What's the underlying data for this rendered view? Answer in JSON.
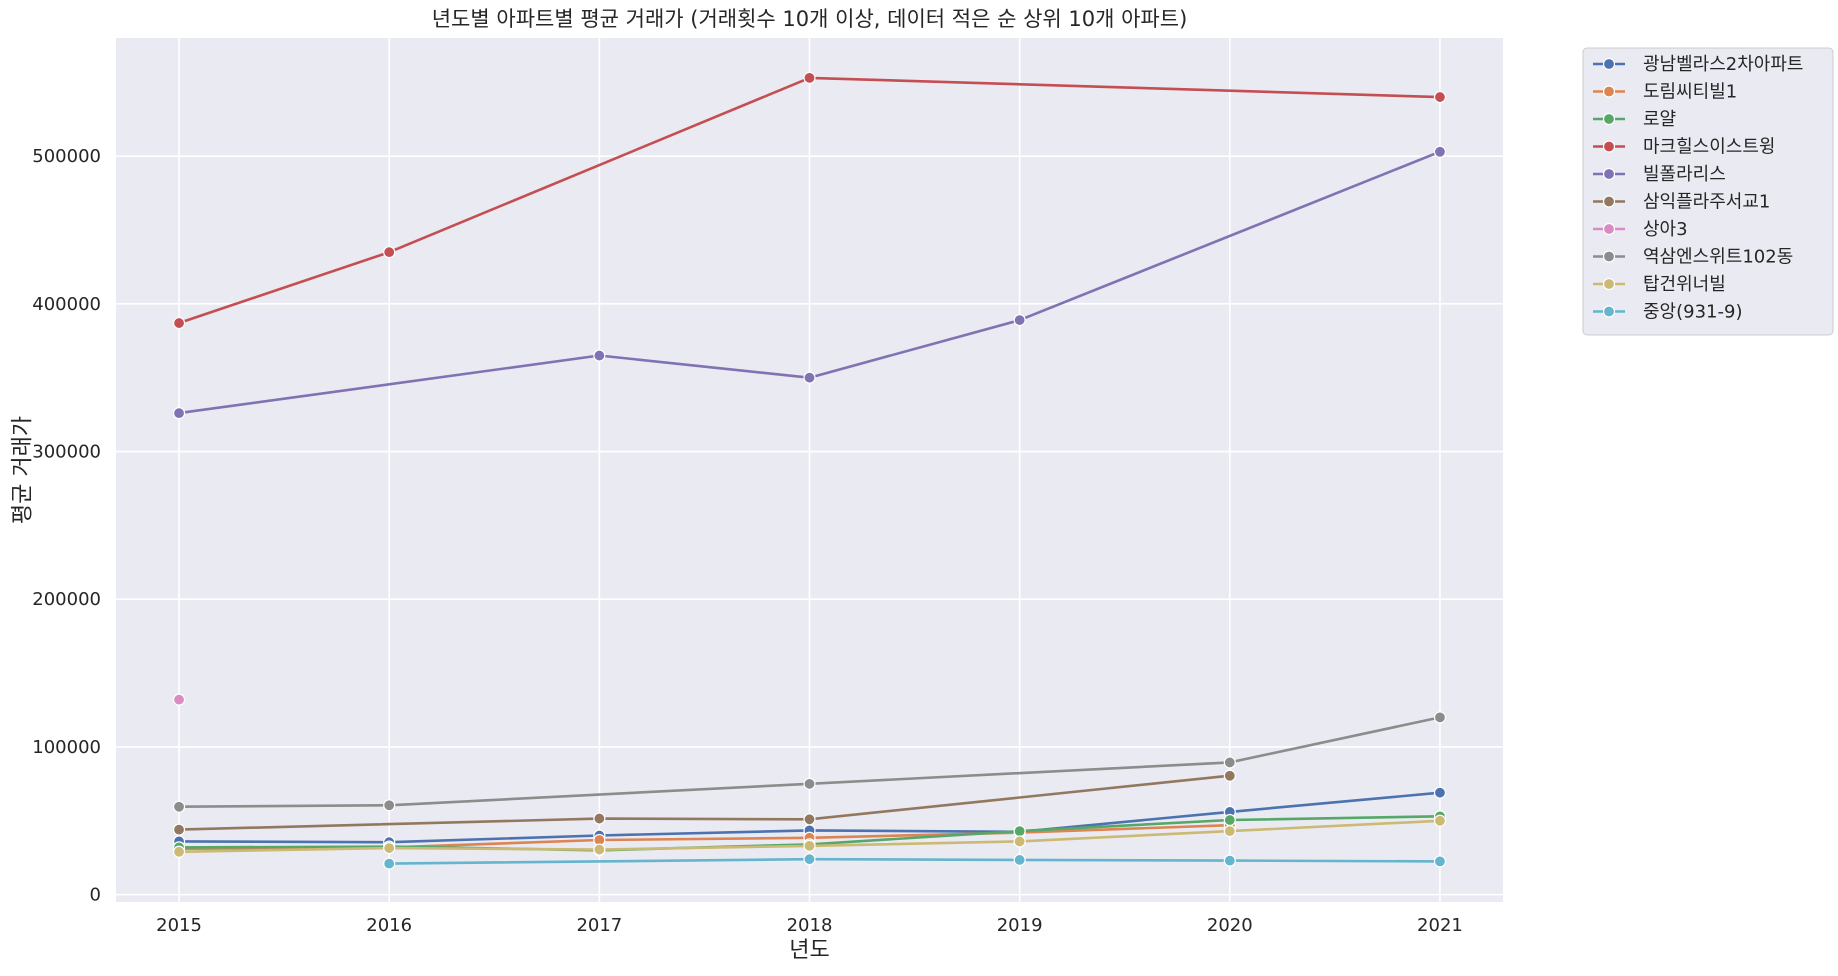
{
  "chart_data": {
    "type": "line",
    "title": "년도별 아파트별 평균 거래가 (거래횟수 10개 이상, 데이터 적은 순 상위 10개 아파트)",
    "xlabel": "년도",
    "ylabel": "평균 거래가",
    "x": [
      2015,
      2016,
      2017,
      2018,
      2019,
      2020,
      2021
    ],
    "xlim": [
      2014.7,
      2021.3
    ],
    "ylim": [
      -5000,
      580000
    ],
    "yticks": [
      0,
      100000,
      200000,
      300000,
      400000,
      500000
    ],
    "grid": true,
    "legend_position": "outside-top-right",
    "colors": {
      "background": "#eaeaf2",
      "grid": "#ffffff"
    },
    "series": [
      {
        "name": "광남벨라스2차아파트",
        "color": "#4c72b0",
        "values": [
          36000,
          35500,
          40000,
          43500,
          42500,
          56000,
          69000
        ]
      },
      {
        "name": "도림씨티빌1",
        "color": "#dd8452",
        "values": [
          31000,
          32000,
          37000,
          38500,
          42000,
          47000,
          null
        ]
      },
      {
        "name": "로얄",
        "color": "#55a868",
        "values": [
          32000,
          32500,
          30000,
          34000,
          43000,
          50500,
          53000
        ]
      },
      {
        "name": "마크힐스이스트윙",
        "color": "#c44e52",
        "values": [
          387000,
          435000,
          null,
          553000,
          null,
          null,
          540000
        ]
      },
      {
        "name": "빌폴라리스",
        "color": "#8172b3",
        "values": [
          326000,
          null,
          365000,
          350000,
          389000,
          null,
          503000
        ]
      },
      {
        "name": "삼익플라주서교1",
        "color": "#937860",
        "values": [
          44000,
          null,
          51500,
          51000,
          null,
          80500,
          null
        ]
      },
      {
        "name": "상아3",
        "color": "#da8bc3",
        "values": [
          132000,
          null,
          null,
          null,
          null,
          null,
          null
        ]
      },
      {
        "name": "역삼엔스위트102동",
        "color": "#8c8c8c",
        "values": [
          59500,
          60500,
          null,
          75000,
          null,
          89500,
          120000
        ]
      },
      {
        "name": "탑건위너빌",
        "color": "#ccb974",
        "values": [
          29000,
          31500,
          30500,
          33000,
          36000,
          43000,
          50000
        ]
      },
      {
        "name": "중앙(931-9)",
        "color": "#64b5cd",
        "values": [
          null,
          21000,
          null,
          24000,
          23500,
          23000,
          22500
        ]
      }
    ]
  }
}
